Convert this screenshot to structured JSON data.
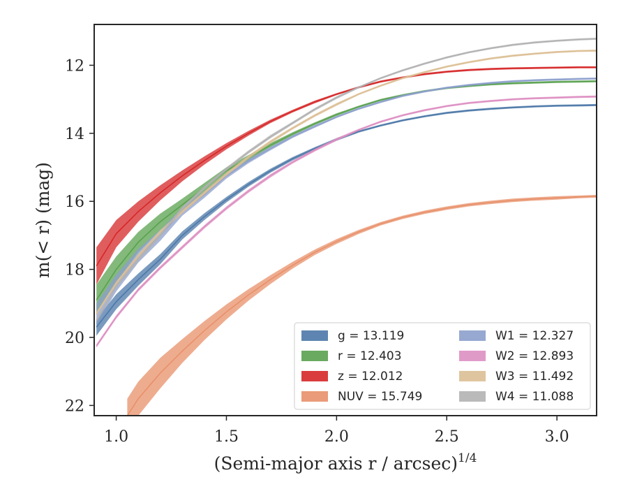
{
  "chart_data": {
    "type": "line",
    "title": "",
    "xlabel_main": "(Semi-major axis r / arcsec)",
    "xlabel_sup": "1/4",
    "ylabel_main": "m(< r) (mag)",
    "xlim": [
      0.9,
      3.18
    ],
    "ylim": [
      22.3,
      10.8
    ],
    "y_inverted": true,
    "grid": false,
    "legend_position": "lower-right",
    "x_ticks": [
      1.0,
      1.5,
      2.0,
      2.5,
      3.0
    ],
    "x_tick_labels": [
      "1.0",
      "1.5",
      "2.0",
      "2.5",
      "3.0"
    ],
    "y_ticks": [
      12,
      14,
      16,
      18,
      20,
      22
    ],
    "y_tick_labels": [
      "12",
      "14",
      "16",
      "18",
      "20",
      "22"
    ],
    "series": [
      {
        "name": "g = 13.119",
        "band": "g",
        "total": "13.119",
        "color": "#4c78a8",
        "x": [
          0.91,
          1.0,
          1.1,
          1.2,
          1.3,
          1.4,
          1.5,
          1.6,
          1.7,
          1.8,
          1.9,
          2.0,
          2.1,
          2.2,
          2.3,
          2.4,
          2.5,
          2.6,
          2.7,
          2.8,
          2.9,
          3.0,
          3.1,
          3.18
        ],
        "y": [
          19.7,
          18.95,
          18.3,
          17.7,
          17.0,
          16.45,
          15.95,
          15.5,
          15.1,
          14.75,
          14.45,
          14.18,
          13.95,
          13.77,
          13.62,
          13.5,
          13.4,
          13.33,
          13.28,
          13.24,
          13.21,
          13.19,
          13.18,
          13.17
        ],
        "band_width": [
          0.25,
          0.22,
          0.18,
          0.15,
          0.12,
          0.1,
          0.08,
          0.07,
          0.06,
          0.05,
          0.04,
          0.04,
          0.03,
          0.03,
          0.03,
          0.03,
          0.03,
          0.03,
          0.03,
          0.03,
          0.03,
          0.03,
          0.03,
          0.03
        ]
      },
      {
        "name": "r = 12.403",
        "band": "r",
        "total": "12.403",
        "color": "#59a14f",
        "x": [
          0.91,
          1.0,
          1.1,
          1.2,
          1.3,
          1.4,
          1.5,
          1.6,
          1.7,
          1.8,
          1.9,
          2.0,
          2.1,
          2.2,
          2.3,
          2.4,
          2.5,
          2.6,
          2.7,
          2.8,
          2.9,
          3.0,
          3.1,
          3.18
        ],
        "y": [
          18.9,
          18.0,
          17.2,
          16.6,
          16.1,
          15.6,
          15.1,
          14.72,
          14.35,
          14.02,
          13.72,
          13.45,
          13.22,
          13.02,
          12.88,
          12.76,
          12.67,
          12.61,
          12.56,
          12.53,
          12.51,
          12.49,
          12.48,
          12.47
        ],
        "band_width": [
          0.45,
          0.38,
          0.3,
          0.24,
          0.18,
          0.14,
          0.1,
          0.08,
          0.06,
          0.05,
          0.04,
          0.04,
          0.03,
          0.03,
          0.03,
          0.03,
          0.03,
          0.03,
          0.03,
          0.03,
          0.03,
          0.03,
          0.03,
          0.03
        ]
      },
      {
        "name": "z = 12.012",
        "band": "z",
        "total": "12.012",
        "color": "#d62728",
        "x": [
          0.91,
          1.0,
          1.1,
          1.2,
          1.3,
          1.4,
          1.5,
          1.6,
          1.7,
          1.8,
          1.9,
          2.0,
          2.1,
          2.2,
          2.3,
          2.4,
          2.5,
          2.6,
          2.7,
          2.8,
          2.9,
          3.0,
          3.1,
          3.18
        ],
        "y": [
          17.9,
          16.95,
          16.3,
          15.75,
          15.25,
          14.8,
          14.38,
          14.0,
          13.65,
          13.35,
          13.08,
          12.85,
          12.65,
          12.48,
          12.36,
          12.26,
          12.19,
          12.14,
          12.11,
          12.09,
          12.08,
          12.07,
          12.06,
          12.06
        ],
        "band_width": [
          0.55,
          0.4,
          0.3,
          0.22,
          0.16,
          0.12,
          0.09,
          0.07,
          0.05,
          0.04,
          0.04,
          0.03,
          0.03,
          0.03,
          0.03,
          0.03,
          0.03,
          0.03,
          0.03,
          0.03,
          0.03,
          0.03,
          0.03,
          0.03
        ]
      },
      {
        "name": "NUV = 15.749",
        "band": "NUV",
        "total": "15.749",
        "color": "#e8906a",
        "x": [
          1.05,
          1.1,
          1.2,
          1.3,
          1.4,
          1.5,
          1.6,
          1.7,
          1.8,
          1.9,
          2.0,
          2.1,
          2.2,
          2.3,
          2.4,
          2.5,
          2.6,
          2.7,
          2.8,
          2.9,
          3.0,
          3.1,
          3.18
        ],
        "y": [
          22.3,
          21.8,
          21.05,
          20.4,
          19.8,
          19.25,
          18.75,
          18.3,
          17.88,
          17.5,
          17.18,
          16.9,
          16.66,
          16.47,
          16.32,
          16.2,
          16.1,
          16.03,
          15.97,
          15.93,
          15.9,
          15.87,
          15.85
        ],
        "band_width": [
          0.5,
          0.5,
          0.45,
          0.35,
          0.28,
          0.22,
          0.17,
          0.13,
          0.1,
          0.08,
          0.07,
          0.06,
          0.05,
          0.05,
          0.05,
          0.05,
          0.05,
          0.05,
          0.05,
          0.05,
          0.05,
          0.04,
          0.04
        ]
      },
      {
        "name": "W1 = 12.327",
        "band": "W1",
        "total": "12.327",
        "color": "#8c9fcc",
        "x": [
          0.91,
          1.0,
          1.1,
          1.2,
          1.3,
          1.4,
          1.5,
          1.6,
          1.7,
          1.8,
          1.9,
          2.0,
          2.1,
          2.2,
          2.3,
          2.4,
          2.5,
          2.6,
          2.7,
          2.8,
          2.9,
          3.0,
          3.1,
          3.18
        ],
        "y": [
          19.3,
          18.4,
          17.6,
          17.0,
          16.3,
          15.8,
          15.25,
          14.82,
          14.45,
          14.1,
          13.8,
          13.52,
          13.28,
          13.08,
          12.9,
          12.77,
          12.66,
          12.58,
          12.52,
          12.47,
          12.44,
          12.42,
          12.4,
          12.39
        ],
        "band_width": [
          0.3,
          0.25,
          0.2,
          0.16,
          0.12,
          0.1,
          0.08,
          0.06,
          0.05,
          0.04,
          0.04,
          0.03,
          0.03,
          0.03,
          0.03,
          0.03,
          0.03,
          0.03,
          0.03,
          0.03,
          0.03,
          0.03,
          0.03,
          0.03
        ]
      },
      {
        "name": "W2 = 12.893",
        "band": "W2",
        "total": "12.893",
        "color": "#dd8fc2",
        "x": [
          0.91,
          1.0,
          1.1,
          1.2,
          1.3,
          1.4,
          1.5,
          1.6,
          1.7,
          1.8,
          1.9,
          2.0,
          2.1,
          2.2,
          2.3,
          2.4,
          2.5,
          2.6,
          2.7,
          2.8,
          2.9,
          3.0,
          3.1,
          3.18
        ],
        "y": [
          20.25,
          19.4,
          18.6,
          17.95,
          17.35,
          16.75,
          16.2,
          15.7,
          15.25,
          14.85,
          14.5,
          14.18,
          13.9,
          13.66,
          13.47,
          13.32,
          13.2,
          13.11,
          13.05,
          13.0,
          12.97,
          12.95,
          12.93,
          12.92
        ],
        "band_width": [
          0.05,
          0.05,
          0.05,
          0.05,
          0.05,
          0.05,
          0.05,
          0.05,
          0.05,
          0.04,
          0.04,
          0.04,
          0.03,
          0.03,
          0.03,
          0.03,
          0.03,
          0.03,
          0.03,
          0.03,
          0.03,
          0.03,
          0.03,
          0.03
        ]
      },
      {
        "name": "W3 = 11.492",
        "band": "W3",
        "total": "11.492",
        "color": "#dcbf95",
        "x": [
          0.91,
          1.0,
          1.1,
          1.2,
          1.3,
          1.4,
          1.5,
          1.6,
          1.7,
          1.8,
          1.9,
          2.0,
          2.1,
          2.2,
          2.3,
          2.4,
          2.5,
          2.6,
          2.7,
          2.8,
          2.9,
          3.0,
          3.1,
          3.18
        ],
        "y": [
          19.3,
          18.4,
          17.6,
          16.9,
          16.3,
          15.75,
          15.2,
          14.7,
          14.25,
          13.85,
          13.48,
          13.15,
          12.85,
          12.6,
          12.38,
          12.2,
          12.04,
          11.91,
          11.8,
          11.72,
          11.66,
          11.61,
          11.58,
          11.57
        ],
        "band_width": [
          0.05,
          0.05,
          0.05,
          0.05,
          0.05,
          0.05,
          0.05,
          0.05,
          0.05,
          0.04,
          0.04,
          0.04,
          0.03,
          0.03,
          0.03,
          0.03,
          0.03,
          0.03,
          0.03,
          0.03,
          0.03,
          0.03,
          0.03,
          0.03
        ]
      },
      {
        "name": "W4 = 11.088",
        "band": "W4",
        "total": "11.088",
        "color": "#b2b2b2",
        "x": [
          0.91,
          1.0,
          1.1,
          1.2,
          1.3,
          1.4,
          1.5,
          1.6,
          1.7,
          1.8,
          1.9,
          2.0,
          2.1,
          2.2,
          2.3,
          2.4,
          2.5,
          2.6,
          2.7,
          2.8,
          2.9,
          3.0,
          3.1,
          3.18
        ],
        "y": [
          19.5,
          18.5,
          17.7,
          17.0,
          16.2,
          15.6,
          15.05,
          14.55,
          14.1,
          13.7,
          13.3,
          12.95,
          12.65,
          12.38,
          12.15,
          11.95,
          11.77,
          11.62,
          11.5,
          11.4,
          11.33,
          11.28,
          11.24,
          11.22
        ],
        "band_width": [
          0.05,
          0.05,
          0.05,
          0.05,
          0.05,
          0.05,
          0.05,
          0.05,
          0.05,
          0.04,
          0.04,
          0.04,
          0.03,
          0.03,
          0.03,
          0.03,
          0.03,
          0.03,
          0.03,
          0.03,
          0.03,
          0.03,
          0.03,
          0.03
        ]
      }
    ]
  }
}
